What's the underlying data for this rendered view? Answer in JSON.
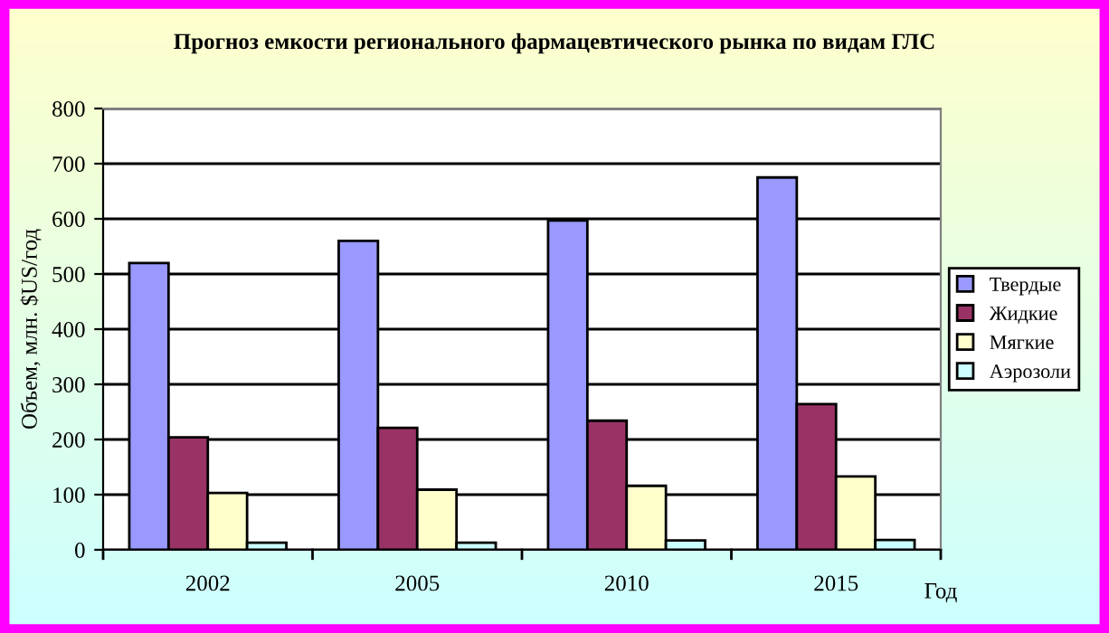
{
  "chart_data": {
    "type": "bar",
    "title": "Прогноз емкости регионального фармацевтического рынка по видам ГЛС",
    "xlabel": "Год",
    "ylabel": "Объем, млн. $US/год",
    "categories": [
      "2002",
      "2005",
      "2010",
      "2015"
    ],
    "series": [
      {
        "name": "Твердые",
        "color": "#9999ff",
        "values": [
          520,
          560,
          597,
          675
        ]
      },
      {
        "name": "Жидкие",
        "color": "#993366",
        "values": [
          204,
          221,
          234,
          264
        ]
      },
      {
        "name": "Мягкие",
        "color": "#ffffcc",
        "values": [
          103,
          109,
          116,
          133
        ]
      },
      {
        "name": "Аэрозоли",
        "color": "#ccffff",
        "values": [
          13,
          13,
          17,
          18
        ]
      }
    ],
    "ylim": [
      0,
      800
    ],
    "yticks": [
      0,
      100,
      200,
      300,
      400,
      500,
      600,
      700,
      800
    ],
    "grid": "y",
    "legend": "right"
  }
}
